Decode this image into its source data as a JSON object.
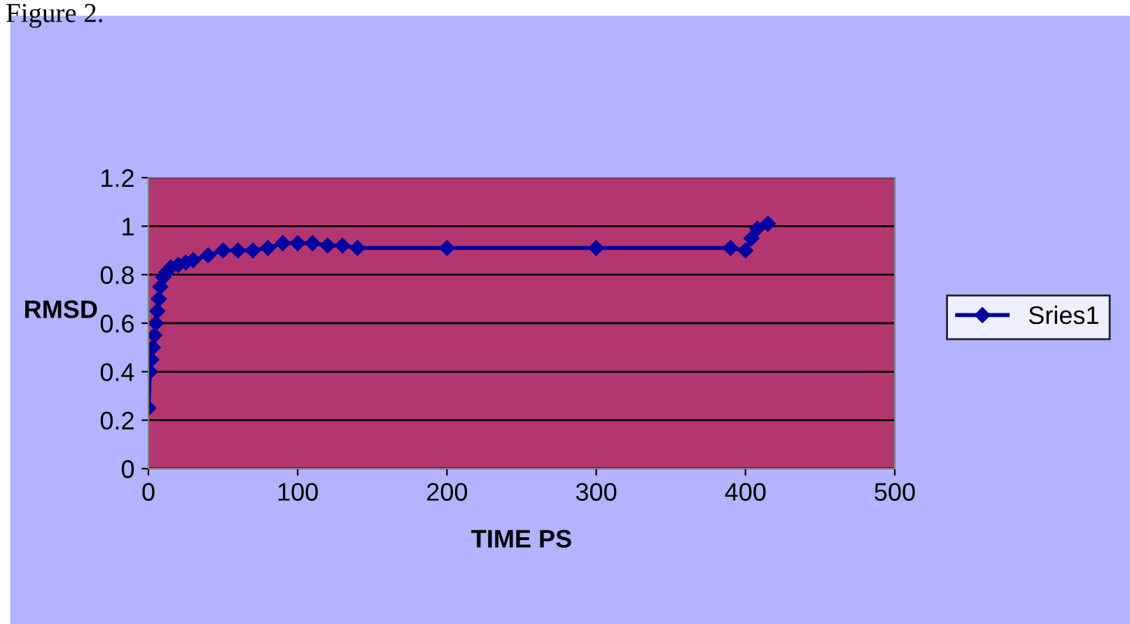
{
  "chart_data": {
    "type": "line",
    "xlabel": "TIME PS",
    "ylabel": "RMSD",
    "annotations": [
      "Figure 2."
    ],
    "x": [
      0,
      1,
      2,
      3,
      4,
      5,
      6,
      7,
      8,
      10,
      12,
      15,
      20,
      25,
      30,
      40,
      50,
      60,
      70,
      80,
      90,
      100,
      110,
      120,
      130,
      140,
      200,
      300,
      390,
      400,
      404,
      408,
      415
    ],
    "series": [
      {
        "name": "Sries1",
        "color": "#0000a0",
        "values": [
          0.25,
          0.4,
          0.45,
          0.5,
          0.55,
          0.6,
          0.65,
          0.7,
          0.75,
          0.79,
          0.81,
          0.83,
          0.84,
          0.85,
          0.86,
          0.88,
          0.9,
          0.9,
          0.9,
          0.91,
          0.93,
          0.93,
          0.93,
          0.92,
          0.92,
          0.91,
          0.91,
          0.91,
          0.91,
          0.9,
          0.95,
          0.99,
          1.01
        ]
      }
    ],
    "xlim": [
      0,
      500
    ],
    "xticks": [
      0,
      100,
      200,
      300,
      400,
      500
    ],
    "ylim": [
      0,
      1.2
    ],
    "yticks": [
      0,
      0.2,
      0.4,
      0.6,
      0.8,
      1,
      1.2
    ],
    "grid": "y",
    "legend": "right",
    "marker": "diamond",
    "line_style": "solid"
  }
}
